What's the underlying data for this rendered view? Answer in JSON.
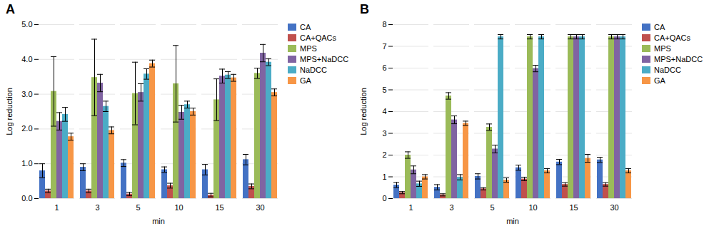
{
  "chart_data": [
    {
      "type": "bar",
      "title": "A",
      "xlabel": "min",
      "ylabel": "Log reduction",
      "categories": [
        "1",
        "3",
        "5",
        "10",
        "15",
        "30"
      ],
      "ylim": [
        0,
        5
      ],
      "yticks": [
        0,
        1,
        2,
        3,
        4,
        5
      ],
      "grid": true,
      "legend": "right",
      "series": [
        {
          "name": "CA",
          "color": "#4472c4",
          "values": [
            0.8,
            0.9,
            1.02,
            0.83,
            0.83,
            1.12
          ],
          "errors": [
            0.2,
            0.1,
            0.1,
            0.08,
            0.15,
            0.15
          ]
        },
        {
          "name": "CA+QACs",
          "color": "#c0504d",
          "values": [
            0.22,
            0.22,
            0.13,
            0.37,
            0.1,
            0.35
          ],
          "errors": [
            0.05,
            0.05,
            0.05,
            0.07,
            0.05,
            0.07
          ]
        },
        {
          "name": "MPS",
          "color": "#9bbb59",
          "values": [
            3.08,
            3.48,
            3.02,
            3.3,
            2.84,
            3.6
          ],
          "errors": [
            1.0,
            1.1,
            0.9,
            1.1,
            0.6,
            0.15
          ]
        },
        {
          "name": "MPS+NaDCC",
          "color": "#8064a2",
          "values": [
            2.22,
            3.32,
            3.05,
            2.48,
            3.52,
            4.18
          ],
          "errors": [
            0.25,
            0.25,
            0.25,
            0.2,
            0.2,
            0.25
          ]
        },
        {
          "name": "NaDCC",
          "color": "#4bacc6",
          "values": [
            2.42,
            2.65,
            3.58,
            2.7,
            3.55,
            3.92
          ],
          "errors": [
            0.2,
            0.15,
            0.15,
            0.1,
            0.1,
            0.1
          ]
        },
        {
          "name": "GA",
          "color": "#f79646",
          "values": [
            1.78,
            1.96,
            3.88,
            2.5,
            3.47,
            3.05
          ],
          "errors": [
            0.1,
            0.1,
            0.1,
            0.1,
            0.1,
            0.1
          ]
        }
      ]
    },
    {
      "type": "bar",
      "title": "B",
      "xlabel": "min",
      "ylabel": "Log reduction",
      "categories": [
        "1",
        "3",
        "5",
        "10",
        "15",
        "30"
      ],
      "ylim": [
        0,
        8
      ],
      "yticks": [
        0,
        1,
        2,
        3,
        4,
        5,
        6,
        7,
        8
      ],
      "grid": true,
      "legend": "right",
      "series": [
        {
          "name": "CA",
          "color": "#4472c4",
          "values": [
            0.62,
            0.52,
            1.02,
            1.42,
            1.68,
            1.78
          ],
          "errors": [
            0.12,
            0.12,
            0.12,
            0.12,
            0.12,
            0.12
          ]
        },
        {
          "name": "CA+QACs",
          "color": "#c0504d",
          "values": [
            0.27,
            0.17,
            0.45,
            0.9,
            0.65,
            0.65
          ],
          "errors": [
            0.05,
            0.05,
            0.05,
            0.08,
            0.08,
            0.08
          ]
        },
        {
          "name": "MPS",
          "color": "#9bbb59",
          "values": [
            2.0,
            4.72,
            3.28,
            7.44,
            7.44,
            7.44
          ],
          "errors": [
            0.15,
            0.15,
            0.15,
            0.1,
            0.1,
            0.1
          ]
        },
        {
          "name": "MPS+NaDCC",
          "color": "#8064a2",
          "values": [
            1.32,
            3.62,
            2.28,
            5.98,
            7.44,
            7.44
          ],
          "errors": [
            0.18,
            0.18,
            0.18,
            0.15,
            0.1,
            0.1
          ]
        },
        {
          "name": "NaDCC",
          "color": "#4bacc6",
          "values": [
            0.68,
            0.98,
            7.44,
            7.44,
            7.44,
            7.44
          ],
          "errors": [
            0.12,
            0.12,
            0.1,
            0.1,
            0.1,
            0.1
          ]
        },
        {
          "name": "GA",
          "color": "#f79646",
          "values": [
            1.0,
            3.46,
            0.85,
            1.28,
            1.85,
            1.28
          ],
          "errors": [
            0.1,
            0.1,
            0.1,
            0.1,
            0.18,
            0.1
          ]
        }
      ]
    }
  ]
}
